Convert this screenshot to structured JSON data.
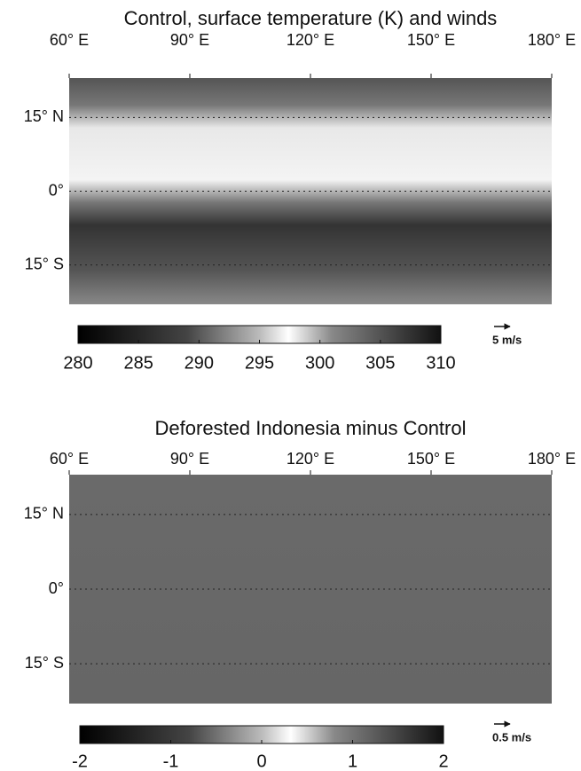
{
  "chart_data": [
    {
      "type": "map",
      "title": "Control, surface temperature (K) and winds",
      "xlim": [
        60,
        180
      ],
      "ylim": [
        -23,
        23
      ],
      "xticks": [
        {
          "value": 60,
          "label": "60° E"
        },
        {
          "value": 90,
          "label": "90° E"
        },
        {
          "value": 120,
          "label": "120° E"
        },
        {
          "value": 150,
          "label": "150° E"
        },
        {
          "value": 180,
          "label": "180° E"
        }
      ],
      "yticks": [
        {
          "value": 15,
          "label": "15° N"
        },
        {
          "value": 0,
          "label": "0°"
        },
        {
          "value": -15,
          "label": "15° S"
        }
      ],
      "grid": true,
      "colorbar": {
        "lim": [
          280,
          310
        ],
        "ticks": [
          280,
          285,
          290,
          295,
          300,
          305,
          310
        ]
      },
      "vector_key": "5 m/s"
    },
    {
      "type": "map",
      "title": "Deforested Indonesia minus Control",
      "xlim": [
        60,
        180
      ],
      "ylim": [
        -23,
        23
      ],
      "xticks": [
        {
          "value": 60,
          "label": "60° E"
        },
        {
          "value": 90,
          "label": "90° E"
        },
        {
          "value": 120,
          "label": "120° E"
        },
        {
          "value": 150,
          "label": "150° E"
        },
        {
          "value": 180,
          "label": "180° E"
        }
      ],
      "yticks": [
        {
          "value": 15,
          "label": "15° N"
        },
        {
          "value": 0,
          "label": "0°"
        },
        {
          "value": -15,
          "label": "15° S"
        }
      ],
      "grid": true,
      "colorbar": {
        "lim": [
          -2,
          2
        ],
        "ticks": [
          -2,
          -1,
          0,
          1,
          2
        ]
      },
      "vector_key": "0.5 m/s"
    }
  ]
}
